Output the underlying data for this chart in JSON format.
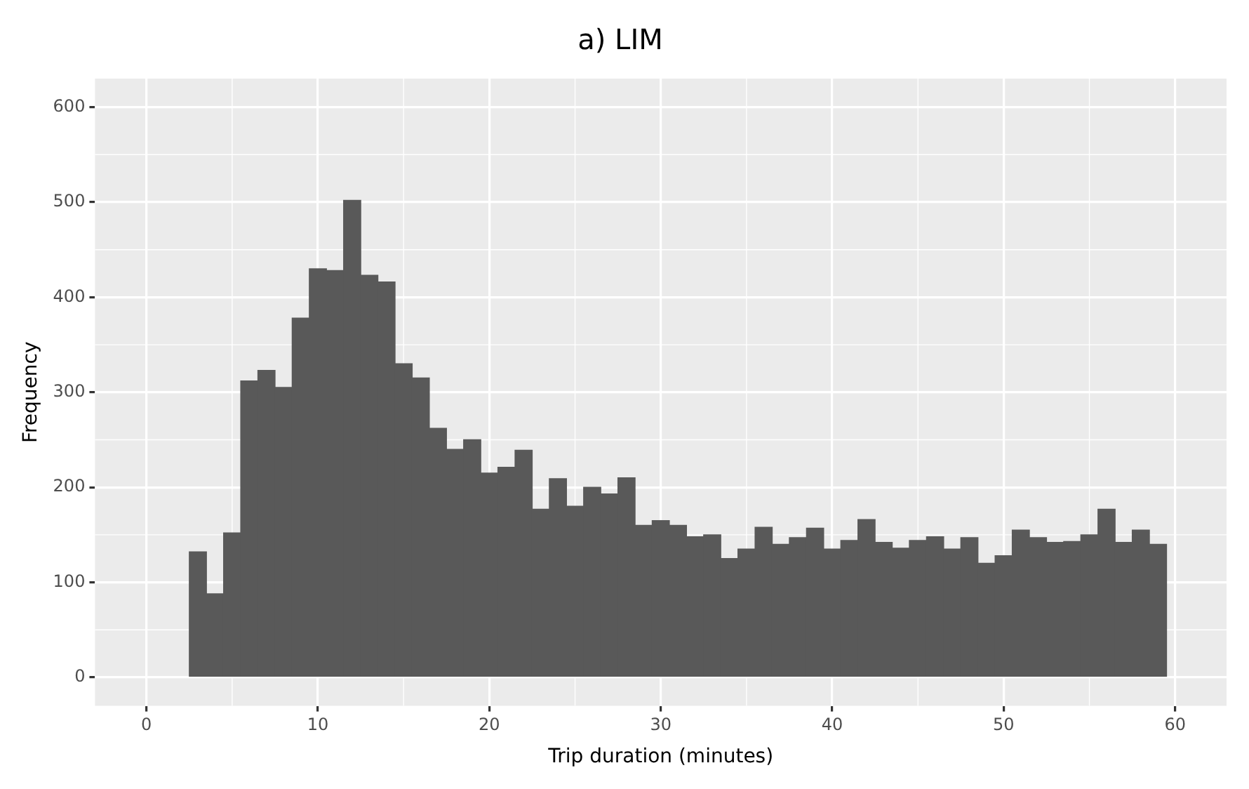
{
  "chart_data": {
    "type": "histogram",
    "title": "a) LIM",
    "xlabel": "Trip duration (minutes)",
    "ylabel": "Frequency",
    "bins": [
      2.5,
      3.5,
      4.5,
      5.5,
      6.5,
      7.5,
      8.5,
      9.5,
      10.5,
      11.5,
      12.5,
      13.5,
      14.5,
      15.5,
      16.5,
      17.5,
      18.5,
      19.5,
      20.5,
      21.5,
      22.5,
      23.5,
      24.5,
      25.5,
      26.5,
      27.5,
      28.5,
      29.5,
      30.5,
      31.5,
      32.5,
      33.5,
      34.5,
      35.5,
      36.5,
      37.5,
      38.5,
      39.5,
      40.5,
      41.5,
      42.5,
      43.5,
      44.5,
      45.5,
      46.5,
      47.5,
      48.5,
      49.5,
      50.5,
      51.5,
      52.5,
      53.5,
      54.5,
      55.5,
      56.5,
      57.5,
      58.5,
      59.5
    ],
    "values": [
      132,
      88,
      152,
      312,
      323,
      305,
      378,
      430,
      428,
      502,
      423,
      416,
      330,
      315,
      262,
      240,
      250,
      215,
      221,
      239,
      177,
      209,
      180,
      200,
      193,
      210,
      160,
      165,
      160,
      148,
      150,
      125,
      135,
      158,
      140,
      147,
      157,
      135,
      144,
      166,
      142,
      136,
      144,
      148,
      135,
      147,
      120,
      128,
      155,
      147,
      142,
      143,
      150,
      177,
      142,
      155,
      140
    ],
    "color": "#595959",
    "xlim": [
      -3,
      63
    ],
    "xticks": [
      0,
      10,
      20,
      30,
      40,
      50,
      60
    ],
    "ylim": [
      -30,
      630
    ],
    "yticks": [
      0,
      100,
      200,
      300,
      400,
      500,
      600
    ],
    "grid": true,
    "legend": false
  }
}
